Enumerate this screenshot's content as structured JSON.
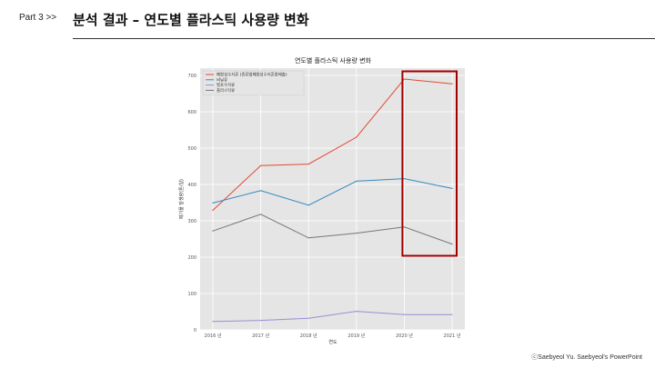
{
  "header": {
    "part_label": "Part 3  >>",
    "title": "분석 결과 – 연도별 플라스틱 사용량 변화"
  },
  "footer": {
    "credit": "ⓒSaebyeol Yu. Saebyeol's PowerPoint"
  },
  "chart_data": {
    "type": "line",
    "title": "연도별 플라스틱 사용량 변화",
    "xlabel": "연도",
    "ylabel": "폐기물 발생량(톤/일)",
    "categories": [
      "2016 년",
      "2017 년",
      "2018 년",
      "2019 년",
      "2020 년",
      "2021 년"
    ],
    "ylim": [
      0,
      720
    ],
    "yticks": [
      0,
      100,
      200,
      300,
      400,
      500,
      600,
      700
    ],
    "grid": true,
    "legend_position": "top-left",
    "series": [
      {
        "name": "폐합성수지류 (종류별폐합성수지혼합배출)",
        "color": "#e24a33",
        "values": [
          329,
          452,
          456,
          530,
          690,
          677
        ]
      },
      {
        "name": "비닐류",
        "color": "#348abd",
        "values": [
          349,
          383,
          343,
          409,
          416,
          389
        ]
      },
      {
        "name": "발포수지류",
        "color": "#988ed5",
        "values": [
          23,
          26,
          32,
          51,
          42,
          42
        ]
      },
      {
        "name": "플라스틱류",
        "color": "#777777",
        "values": [
          272,
          318,
          253,
          266,
          283,
          236
        ]
      }
    ],
    "highlight": {
      "from_category": "2020 년",
      "to_category": "2021 년",
      "color": "#a30000"
    }
  }
}
